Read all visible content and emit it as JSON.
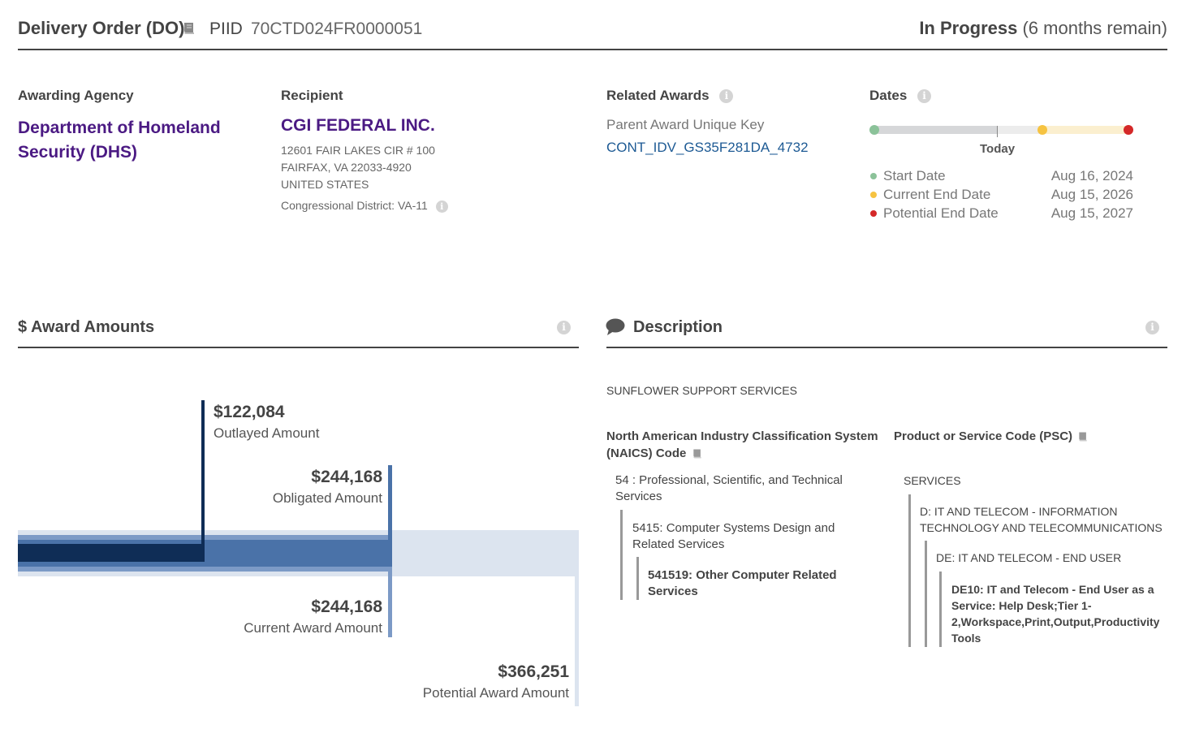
{
  "header": {
    "title": "Delivery Order (DO)",
    "piid_label": "PIID",
    "piid": "70CTD024FR0000051",
    "status": "In Progress",
    "remaining": "(6 months remain)"
  },
  "agency": {
    "label": "Awarding Agency",
    "name": "Department of Homeland Security (DHS)"
  },
  "recipient": {
    "label": "Recipient",
    "name": "CGI FEDERAL INC.",
    "address_line1": "12601 FAIR LAKES CIR # 100",
    "address_line2": "FAIRFAX, VA 22033-4920",
    "country": "UNITED STATES",
    "congressional_district": "Congressional District: VA-11"
  },
  "related": {
    "label": "Related Awards",
    "parent_label": "Parent Award Unique Key",
    "parent_key": "CONT_IDV_GS35F281DA_4732"
  },
  "dates": {
    "label": "Dates",
    "today_label": "Today",
    "items": [
      {
        "label": "Start Date",
        "value": "Aug 16, 2024",
        "color": "#8bc299"
      },
      {
        "label": "Current End Date",
        "value": "Aug 15, 2026",
        "color": "#f6c341"
      },
      {
        "label": "Potential End Date",
        "value": "Aug 15, 2027",
        "color": "#d42828"
      }
    ]
  },
  "amounts": {
    "title": "$ Award Amounts",
    "outlayed": {
      "value": "$122,084",
      "label": "Outlayed Amount"
    },
    "obligated": {
      "value": "$244,168",
      "label": "Obligated Amount"
    },
    "current": {
      "value": "$244,168",
      "label": "Current Award Amount"
    },
    "potential": {
      "value": "$366,251",
      "label": "Potential Award Amount"
    },
    "colors": {
      "outlayed": "#0f2d56",
      "obligated": "#4a72a8",
      "current": "#7c9ac6",
      "potential": "#dce4ef"
    }
  },
  "description": {
    "title": "Description",
    "text": "SUNFLOWER SUPPORT SERVICES",
    "naics": {
      "heading_line1": "North American Industry Classification System",
      "heading_line2": "(NAICS)  Code",
      "level1_line1": "54 : Professional, Scientific, and Technical",
      "level1_line2": "Services",
      "level2_line1": "5415: Computer Systems Design and",
      "level2_line2": "Related Services",
      "level3_line1": "541519: Other Computer Related",
      "level3_line2": "Services"
    },
    "psc": {
      "heading": "Product or Service Code  (PSC)",
      "level1": "SERVICES",
      "level2_line1": "D: IT AND TELECOM - INFORMATION",
      "level2_line2": "TECHNOLOGY AND TELECOMMUNICATIONS",
      "level3": "DE: IT AND TELECOM - END USER",
      "level4_line1": "DE10: IT and Telecom - End User as a",
      "level4_line2": "Service: Help Desk;Tier 1-",
      "level4_line3": "2,Workspace,Print,Output,Productivity",
      "level4_line4": "Tools"
    }
  }
}
